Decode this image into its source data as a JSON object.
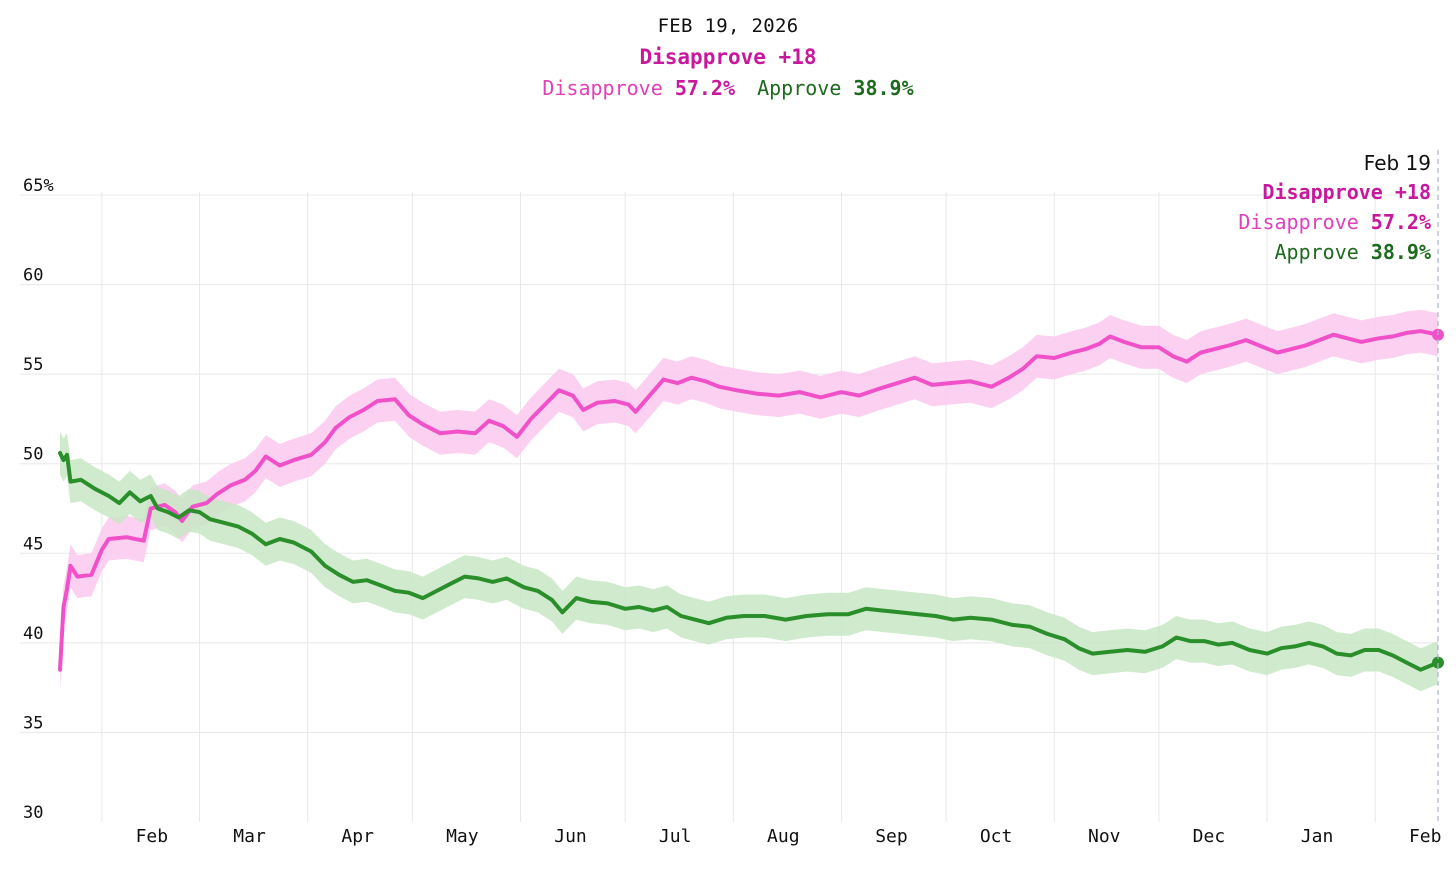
{
  "header": {
    "date": "FEB 19, 2026",
    "margin_label": "Disapprove +18",
    "disapprove_label": "Disapprove",
    "disapprove_value": "57.2%",
    "approve_label": "Approve",
    "approve_value": "38.9%"
  },
  "tooltip": {
    "date": "Feb 19",
    "margin_label": "Disapprove +18",
    "disapprove_label": "Disapprove",
    "disapprove_value": "57.2%",
    "approve_label": "Approve",
    "approve_value": "38.9%"
  },
  "colors": {
    "disapprove": "#f050c8",
    "disapprove_text": "#c8189c",
    "disapprove_band": "#fcc8ee",
    "approve": "#2a8f2a",
    "approve_text": "#1e6a1e",
    "approve_band": "#c8e6c4",
    "grid": "#e8e8e8"
  },
  "chart_data": {
    "type": "line",
    "y_ticks": [
      "65%",
      "60",
      "55",
      "50",
      "45",
      "40",
      "35",
      "30"
    ],
    "y_tick_values": [
      65,
      60,
      55,
      50,
      45,
      40,
      35,
      30
    ],
    "ylim": [
      30,
      65
    ],
    "x_ticks": [
      "Feb",
      "Mar",
      "Apr",
      "May",
      "Jun",
      "Jul",
      "Aug",
      "Sep",
      "Oct",
      "Nov",
      "Dec",
      "Jan",
      "Feb"
    ],
    "x_tick_dates": [
      "2025-02-01",
      "2025-03-01",
      "2025-04-01",
      "2025-05-01",
      "2025-06-01",
      "2025-07-01",
      "2025-08-01",
      "2025-09-01",
      "2025-10-01",
      "2025-11-01",
      "2025-12-01",
      "2026-01-01",
      "2026-02-01"
    ],
    "x_range": [
      "2025-01-20",
      "2026-02-19"
    ],
    "grid": true,
    "band_width": 1.2,
    "series": [
      {
        "name": "Disapprove",
        "points": [
          [
            "2025-01-20",
            38.5
          ],
          [
            "2025-01-21",
            42.0
          ],
          [
            "2025-01-22",
            43.0
          ],
          [
            "2025-01-23",
            44.3
          ],
          [
            "2025-01-25",
            43.7
          ],
          [
            "2025-01-29",
            43.8
          ],
          [
            "2025-02-01",
            45.2
          ],
          [
            "2025-02-03",
            45.8
          ],
          [
            "2025-02-08",
            45.9
          ],
          [
            "2025-02-13",
            45.7
          ],
          [
            "2025-02-15",
            47.5
          ],
          [
            "2025-02-19",
            47.7
          ],
          [
            "2025-02-22",
            47.3
          ],
          [
            "2025-02-24",
            46.8
          ],
          [
            "2025-02-27",
            47.6
          ],
          [
            "2025-03-03",
            47.8
          ],
          [
            "2025-03-06",
            48.3
          ],
          [
            "2025-03-10",
            48.8
          ],
          [
            "2025-03-14",
            49.1
          ],
          [
            "2025-03-17",
            49.6
          ],
          [
            "2025-03-20",
            50.4
          ],
          [
            "2025-03-24",
            49.9
          ],
          [
            "2025-03-28",
            50.2
          ],
          [
            "2025-04-02",
            50.5
          ],
          [
            "2025-04-06",
            51.2
          ],
          [
            "2025-04-09",
            52.0
          ],
          [
            "2025-04-13",
            52.6
          ],
          [
            "2025-04-17",
            53.0
          ],
          [
            "2025-04-21",
            53.5
          ],
          [
            "2025-04-26",
            53.6
          ],
          [
            "2025-04-30",
            52.7
          ],
          [
            "2025-05-04",
            52.2
          ],
          [
            "2025-05-09",
            51.7
          ],
          [
            "2025-05-14",
            51.8
          ],
          [
            "2025-05-19",
            51.7
          ],
          [
            "2025-05-23",
            52.4
          ],
          [
            "2025-05-27",
            52.1
          ],
          [
            "2025-05-31",
            51.5
          ],
          [
            "2025-06-04",
            52.5
          ],
          [
            "2025-06-08",
            53.3
          ],
          [
            "2025-06-12",
            54.1
          ],
          [
            "2025-06-16",
            53.8
          ],
          [
            "2025-06-19",
            53.0
          ],
          [
            "2025-06-23",
            53.4
          ],
          [
            "2025-06-28",
            53.5
          ],
          [
            "2025-07-02",
            53.3
          ],
          [
            "2025-07-04",
            52.9
          ],
          [
            "2025-07-08",
            53.8
          ],
          [
            "2025-07-12",
            54.7
          ],
          [
            "2025-07-16",
            54.5
          ],
          [
            "2025-07-20",
            54.8
          ],
          [
            "2025-07-24",
            54.6
          ],
          [
            "2025-07-28",
            54.3
          ],
          [
            "2025-08-02",
            54.1
          ],
          [
            "2025-08-08",
            53.9
          ],
          [
            "2025-08-14",
            53.8
          ],
          [
            "2025-08-20",
            54.0
          ],
          [
            "2025-08-26",
            53.7
          ],
          [
            "2025-09-01",
            54.0
          ],
          [
            "2025-09-06",
            53.8
          ],
          [
            "2025-09-12",
            54.2
          ],
          [
            "2025-09-17",
            54.5
          ],
          [
            "2025-09-22",
            54.8
          ],
          [
            "2025-09-27",
            54.4
          ],
          [
            "2025-10-02",
            54.5
          ],
          [
            "2025-10-08",
            54.6
          ],
          [
            "2025-10-14",
            54.3
          ],
          [
            "2025-10-19",
            54.8
          ],
          [
            "2025-10-23",
            55.3
          ],
          [
            "2025-10-27",
            56.0
          ],
          [
            "2025-11-01",
            55.9
          ],
          [
            "2025-11-06",
            56.2
          ],
          [
            "2025-11-10",
            56.4
          ],
          [
            "2025-11-14",
            56.7
          ],
          [
            "2025-11-17",
            57.1
          ],
          [
            "2025-11-21",
            56.8
          ],
          [
            "2025-11-26",
            56.5
          ],
          [
            "2025-12-01",
            56.5
          ],
          [
            "2025-12-05",
            56.0
          ],
          [
            "2025-12-09",
            55.7
          ],
          [
            "2025-12-13",
            56.2
          ],
          [
            "2025-12-17",
            56.4
          ],
          [
            "2025-12-21",
            56.6
          ],
          [
            "2025-12-26",
            56.9
          ],
          [
            "2025-12-31",
            56.5
          ],
          [
            "2026-01-04",
            56.2
          ],
          [
            "2026-01-08",
            56.4
          ],
          [
            "2026-01-12",
            56.6
          ],
          [
            "2026-01-16",
            56.9
          ],
          [
            "2026-01-20",
            57.2
          ],
          [
            "2026-01-24",
            57.0
          ],
          [
            "2026-01-28",
            56.8
          ],
          [
            "2026-02-02",
            57.0
          ],
          [
            "2026-02-06",
            57.1
          ],
          [
            "2026-02-10",
            57.3
          ],
          [
            "2026-02-14",
            57.4
          ],
          [
            "2026-02-19",
            57.2
          ]
        ]
      },
      {
        "name": "Approve",
        "points": [
          [
            "2025-01-20",
            50.6
          ],
          [
            "2025-01-21",
            50.2
          ],
          [
            "2025-01-22",
            50.5
          ],
          [
            "2025-01-23",
            49.0
          ],
          [
            "2025-01-26",
            49.1
          ],
          [
            "2025-01-30",
            48.6
          ],
          [
            "2025-02-03",
            48.2
          ],
          [
            "2025-02-06",
            47.8
          ],
          [
            "2025-02-09",
            48.4
          ],
          [
            "2025-02-12",
            47.9
          ],
          [
            "2025-02-15",
            48.2
          ],
          [
            "2025-02-17",
            47.5
          ],
          [
            "2025-02-20",
            47.3
          ],
          [
            "2025-02-23",
            47.0
          ],
          [
            "2025-02-26",
            47.4
          ],
          [
            "2025-03-01",
            47.3
          ],
          [
            "2025-03-04",
            46.9
          ],
          [
            "2025-03-08",
            46.7
          ],
          [
            "2025-03-12",
            46.5
          ],
          [
            "2025-03-16",
            46.1
          ],
          [
            "2025-03-20",
            45.5
          ],
          [
            "2025-03-24",
            45.8
          ],
          [
            "2025-03-28",
            45.6
          ],
          [
            "2025-04-02",
            45.1
          ],
          [
            "2025-04-06",
            44.3
          ],
          [
            "2025-04-10",
            43.8
          ],
          [
            "2025-04-14",
            43.4
          ],
          [
            "2025-04-18",
            43.5
          ],
          [
            "2025-04-22",
            43.2
          ],
          [
            "2025-04-26",
            42.9
          ],
          [
            "2025-04-30",
            42.8
          ],
          [
            "2025-05-04",
            42.5
          ],
          [
            "2025-05-08",
            42.9
          ],
          [
            "2025-05-12",
            43.3
          ],
          [
            "2025-05-16",
            43.7
          ],
          [
            "2025-05-20",
            43.6
          ],
          [
            "2025-05-24",
            43.4
          ],
          [
            "2025-05-28",
            43.6
          ],
          [
            "2025-06-02",
            43.1
          ],
          [
            "2025-06-06",
            42.9
          ],
          [
            "2025-06-10",
            42.4
          ],
          [
            "2025-06-13",
            41.7
          ],
          [
            "2025-06-17",
            42.5
          ],
          [
            "2025-06-21",
            42.3
          ],
          [
            "2025-06-26",
            42.2
          ],
          [
            "2025-07-01",
            41.9
          ],
          [
            "2025-07-05",
            42.0
          ],
          [
            "2025-07-09",
            41.8
          ],
          [
            "2025-07-13",
            42.0
          ],
          [
            "2025-07-17",
            41.5
          ],
          [
            "2025-07-21",
            41.3
          ],
          [
            "2025-07-25",
            41.1
          ],
          [
            "2025-07-30",
            41.4
          ],
          [
            "2025-08-04",
            41.5
          ],
          [
            "2025-08-10",
            41.5
          ],
          [
            "2025-08-16",
            41.3
          ],
          [
            "2025-08-22",
            41.5
          ],
          [
            "2025-08-28",
            41.6
          ],
          [
            "2025-09-03",
            41.6
          ],
          [
            "2025-09-08",
            41.9
          ],
          [
            "2025-09-13",
            41.8
          ],
          [
            "2025-09-18",
            41.7
          ],
          [
            "2025-09-23",
            41.6
          ],
          [
            "2025-09-28",
            41.5
          ],
          [
            "2025-10-03",
            41.3
          ],
          [
            "2025-10-08",
            41.4
          ],
          [
            "2025-10-14",
            41.3
          ],
          [
            "2025-10-20",
            41.0
          ],
          [
            "2025-10-25",
            40.9
          ],
          [
            "2025-10-30",
            40.5
          ],
          [
            "2025-11-04",
            40.2
          ],
          [
            "2025-11-08",
            39.7
          ],
          [
            "2025-11-12",
            39.4
          ],
          [
            "2025-11-17",
            39.5
          ],
          [
            "2025-11-22",
            39.6
          ],
          [
            "2025-11-27",
            39.5
          ],
          [
            "2025-12-02",
            39.8
          ],
          [
            "2025-12-06",
            40.3
          ],
          [
            "2025-12-10",
            40.1
          ],
          [
            "2025-12-14",
            40.1
          ],
          [
            "2025-12-18",
            39.9
          ],
          [
            "2025-12-22",
            40.0
          ],
          [
            "2025-12-27",
            39.6
          ],
          [
            "2026-01-01",
            39.4
          ],
          [
            "2026-01-05",
            39.7
          ],
          [
            "2026-01-09",
            39.8
          ],
          [
            "2026-01-13",
            40.0
          ],
          [
            "2026-01-17",
            39.8
          ],
          [
            "2026-01-21",
            39.4
          ],
          [
            "2026-01-25",
            39.3
          ],
          [
            "2026-01-29",
            39.6
          ],
          [
            "2026-02-02",
            39.6
          ],
          [
            "2026-02-06",
            39.3
          ],
          [
            "2026-02-10",
            38.9
          ],
          [
            "2026-02-14",
            38.5
          ],
          [
            "2026-02-19",
            38.9
          ]
        ]
      }
    ]
  }
}
